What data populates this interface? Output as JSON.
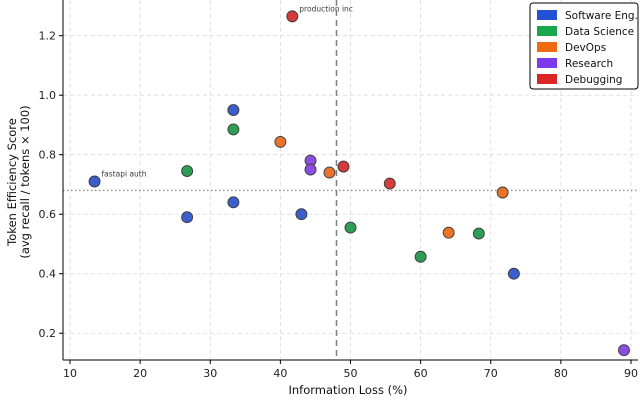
{
  "chart_data": {
    "type": "scatter",
    "xlabel": "Information Loss (%)",
    "ylabel": [
      "Token Efficiency Score",
      "(avg recall / tokens × 100)"
    ],
    "xlim": [
      9,
      91
    ],
    "ylim": [
      0.11,
      1.32
    ],
    "xticks": [
      10,
      20,
      30,
      40,
      50,
      60,
      70,
      80,
      90
    ],
    "yticks": [
      0.2,
      0.4,
      0.6,
      0.8,
      1.0,
      1.2
    ],
    "grid": true,
    "legend_position": "top-right",
    "reference_lines": {
      "x": 48,
      "y": 0.68
    },
    "series": [
      {
        "name": "Software Eng.",
        "color": "#3a5fcd",
        "points": [
          {
            "x": 13.5,
            "y": 0.71
          },
          {
            "x": 26.7,
            "y": 0.59
          },
          {
            "x": 33.3,
            "y": 0.95
          },
          {
            "x": 33.3,
            "y": 0.64
          },
          {
            "x": 43.0,
            "y": 0.6
          },
          {
            "x": 73.3,
            "y": 0.4
          }
        ]
      },
      {
        "name": "Data Science",
        "color": "#2e9e54",
        "points": [
          {
            "x": 26.7,
            "y": 0.745
          },
          {
            "x": 33.3,
            "y": 0.885
          },
          {
            "x": 50.0,
            "y": 0.555
          },
          {
            "x": 60.0,
            "y": 0.457
          },
          {
            "x": 68.3,
            "y": 0.535
          }
        ]
      },
      {
        "name": "DevOps",
        "color": "#e8732a",
        "points": [
          {
            "x": 40.0,
            "y": 0.843
          },
          {
            "x": 47.0,
            "y": 0.74
          },
          {
            "x": 64.0,
            "y": 0.538
          },
          {
            "x": 71.7,
            "y": 0.673
          }
        ]
      },
      {
        "name": "Research",
        "color": "#8a4fe0",
        "points": [
          {
            "x": 44.3,
            "y": 0.78
          },
          {
            "x": 44.3,
            "y": 0.75
          },
          {
            "x": 89.0,
            "y": 0.143
          }
        ]
      },
      {
        "name": "Debugging",
        "color": "#d63b3b",
        "points": [
          {
            "x": 41.7,
            "y": 1.265
          },
          {
            "x": 49.0,
            "y": 0.76
          },
          {
            "x": 55.6,
            "y": 0.703
          }
        ]
      }
    ],
    "annotations": [
      {
        "text": "production inc",
        "x": 41.7,
        "y": 1.265
      },
      {
        "text": "fastapi auth",
        "x": 13.5,
        "y": 0.71
      }
    ],
    "legend": [
      {
        "label": "Software Eng.",
        "color": "#2451d4"
      },
      {
        "label": "Data Science",
        "color": "#18a84b"
      },
      {
        "label": "DevOps",
        "color": "#ef6a10"
      },
      {
        "label": "Research",
        "color": "#7c3aed"
      },
      {
        "label": "Debugging",
        "color": "#dc2626"
      }
    ]
  }
}
